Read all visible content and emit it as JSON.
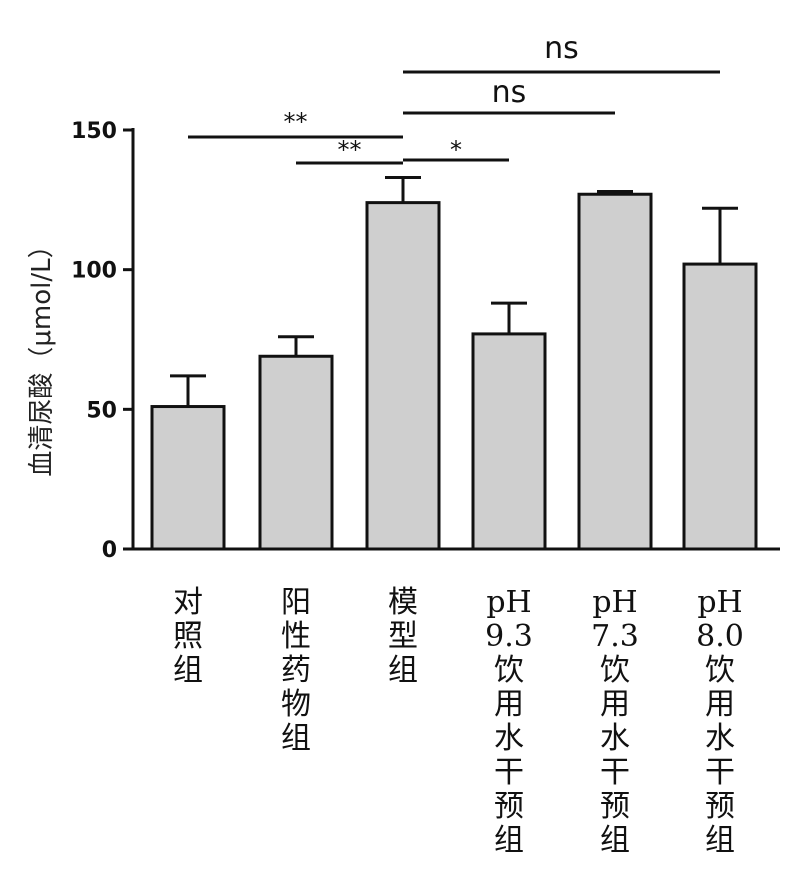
{
  "chart_data": {
    "type": "bar",
    "ylabel": "血清尿酸（μmol/L）",
    "ylim": [
      0,
      150
    ],
    "yticks": [
      0,
      50,
      100,
      150
    ],
    "categories": [
      [
        "对",
        "照",
        "组"
      ],
      [
        "阳",
        "性",
        "药",
        "物",
        "组"
      ],
      [
        "模",
        "型",
        "组"
      ],
      [
        "pH",
        "9.3",
        "饮",
        "用",
        "水",
        "干",
        "预",
        "组"
      ],
      [
        "pH",
        "7.3",
        "饮",
        "用",
        "水",
        "干",
        "预",
        "组"
      ],
      [
        "pH",
        "8.0",
        "饮",
        "用",
        "水",
        "干",
        "预",
        "组"
      ]
    ],
    "values": [
      51,
      69,
      124,
      77,
      127,
      102
    ],
    "errors": [
      11,
      7,
      9,
      11,
      1,
      20
    ],
    "significance": [
      {
        "from": 0,
        "to": 2,
        "label": "**"
      },
      {
        "from": 1,
        "to": 2,
        "label": "**"
      },
      {
        "from": 2,
        "to": 3,
        "label": "*"
      },
      {
        "from": 2,
        "to": 4,
        "label": "ns"
      },
      {
        "from": 2,
        "to": 5,
        "label": "ns"
      }
    ]
  }
}
